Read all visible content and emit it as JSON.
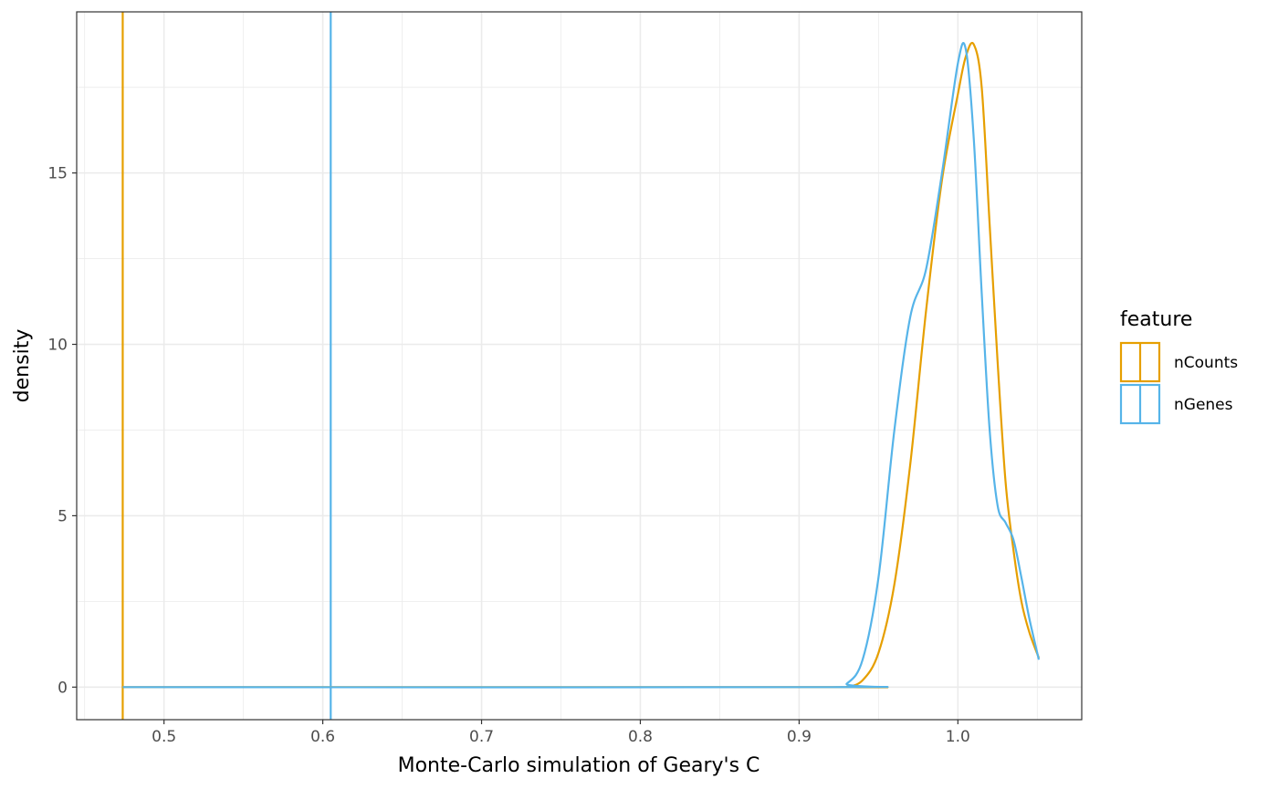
{
  "chart_data": {
    "type": "line",
    "subtype": "density",
    "title": "",
    "xlabel": "Monte-Carlo simulation of Geary's C",
    "ylabel": "density",
    "xlim": [
      0.445,
      1.078
    ],
    "ylim": [
      -0.95,
      19.7
    ],
    "x_ticks": [
      0.5,
      0.6,
      0.7,
      0.8,
      0.9,
      1.0
    ],
    "x_tick_labels": [
      "0.5",
      "0.6",
      "0.7",
      "0.8",
      "0.9",
      "1.0"
    ],
    "y_ticks": [
      0,
      5,
      10,
      15
    ],
    "y_tick_labels": [
      "0",
      "5",
      "10",
      "15"
    ],
    "grid": true,
    "legend": {
      "title": "feature",
      "position": "right"
    },
    "series": [
      {
        "name": "nCounts",
        "color": "#E69F00",
        "observed": 0.474,
        "points": [
          [
            0.474,
            0
          ],
          [
            0.92,
            0
          ],
          [
            0.93,
            0.01
          ],
          [
            0.94,
            0.2
          ],
          [
            0.95,
            1.0
          ],
          [
            0.96,
            3.0
          ],
          [
            0.97,
            6.5
          ],
          [
            0.98,
            11.0
          ],
          [
            0.99,
            14.8
          ],
          [
            1.0,
            17.3
          ],
          [
            1.005,
            18.4
          ],
          [
            1.01,
            18.75
          ],
          [
            1.015,
            17.5
          ],
          [
            1.02,
            13.5
          ],
          [
            1.025,
            9.5
          ],
          [
            1.03,
            6.0
          ],
          [
            1.035,
            4.0
          ],
          [
            1.04,
            2.5
          ],
          [
            1.045,
            1.6
          ],
          [
            1.051,
            0.85
          ]
        ]
      },
      {
        "name": "nGenes",
        "color": "#56B4E9",
        "observed": 0.605,
        "points": [
          [
            0.474,
            0
          ],
          [
            0.92,
            0
          ],
          [
            0.93,
            0.1
          ],
          [
            0.94,
            0.8
          ],
          [
            0.95,
            3.2
          ],
          [
            0.96,
            7.5
          ],
          [
            0.97,
            10.8
          ],
          [
            0.98,
            12.2
          ],
          [
            0.99,
            15.0
          ],
          [
            1.0,
            18.2
          ],
          [
            1.005,
            18.6
          ],
          [
            1.01,
            16.0
          ],
          [
            1.015,
            11.5
          ],
          [
            1.02,
            7.5
          ],
          [
            1.025,
            5.3
          ],
          [
            1.03,
            4.8
          ],
          [
            1.035,
            4.3
          ],
          [
            1.04,
            3.2
          ],
          [
            1.045,
            2.0
          ],
          [
            1.051,
            0.8
          ]
        ]
      }
    ]
  }
}
